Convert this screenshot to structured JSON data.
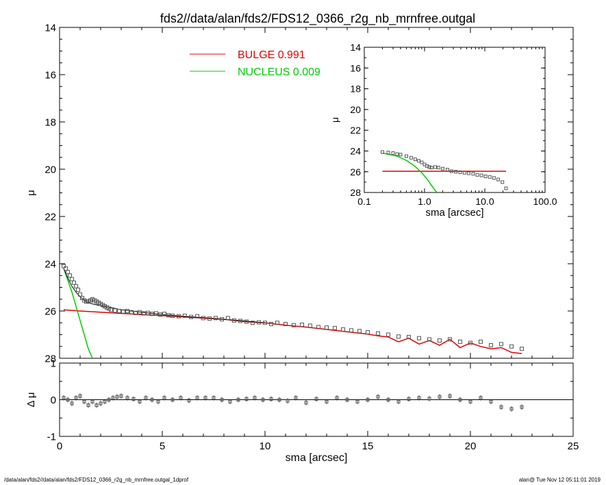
{
  "title": "fds2//data/alan/fds2/FDS12_0366_r2g_nb_mrnfree.outgal",
  "footer": {
    "left": "/data/alan/fds2//data/alan/fds2/FDS12_0366_r2g_nb_mrnfree.outgal_1dprof",
    "right": "alan@  Tue Nov 12 05:11:01 2019"
  },
  "colors": {
    "data": "#555555",
    "bulge": "#e00000",
    "nucleus": "#00cc00",
    "model": "#000000"
  },
  "chart_data": [
    {
      "id": "main",
      "type": "scatter",
      "xlabel": "",
      "ylabel": "μ",
      "xlim": [
        0,
        25
      ],
      "ylim": [
        28,
        14
      ],
      "xticks": [
        0,
        5,
        10,
        15,
        20,
        25
      ],
      "yticks": [
        14,
        16,
        18,
        20,
        22,
        24,
        26,
        28
      ],
      "legend": {
        "placement": "top-center",
        "entries": [
          {
            "label": "BULGE",
            "value": "0.991",
            "color": "#e00000"
          },
          {
            "label": "NUCLEUS",
            "value": "0.009",
            "color": "#00cc00"
          }
        ]
      },
      "series": [
        {
          "name": "BULGE",
          "kind": "line",
          "color": "#e00000",
          "x": [
            0.2,
            1,
            2,
            3,
            4,
            5,
            6,
            7,
            8,
            9,
            10,
            11,
            12,
            13,
            14,
            15,
            15.5,
            16,
            16.5,
            17,
            17.5,
            18,
            18.5,
            19,
            19.5,
            20,
            20.5,
            21,
            21.5,
            22,
            22.5
          ],
          "y": [
            25.95,
            26.0,
            26.05,
            26.1,
            26.15,
            26.2,
            26.25,
            26.3,
            26.35,
            26.45,
            26.5,
            26.6,
            26.68,
            26.78,
            26.88,
            26.98,
            27.05,
            27.1,
            27.3,
            27.15,
            27.4,
            27.25,
            27.45,
            27.2,
            27.55,
            27.35,
            27.5,
            27.6,
            27.55,
            27.75,
            27.8
          ]
        },
        {
          "name": "NUCLEUS",
          "kind": "line",
          "color": "#00cc00",
          "x": [
            0.2,
            0.4,
            0.6,
            0.8,
            1.0,
            1.2,
            1.4,
            1.6
          ],
          "y": [
            24.2,
            24.7,
            25.2,
            25.8,
            26.4,
            27.0,
            27.6,
            28.0
          ]
        },
        {
          "name": "model",
          "kind": "line",
          "color": "#000000",
          "x": [
            0.2,
            0.4,
            0.6,
            0.8,
            1.0,
            1.2,
            1.4,
            1.6,
            2.0,
            2.5,
            3,
            4,
            5,
            6,
            7,
            8,
            9,
            10
          ],
          "y": [
            24.2,
            24.6,
            24.95,
            25.2,
            25.4,
            25.55,
            25.65,
            25.7,
            25.78,
            25.85,
            25.95,
            26.05,
            26.15,
            26.22,
            26.28,
            26.35,
            26.42,
            26.5
          ]
        },
        {
          "name": "data",
          "kind": "points",
          "color": "#555555",
          "x": [
            0.2,
            0.3,
            0.4,
            0.5,
            0.6,
            0.7,
            0.8,
            0.9,
            1.0,
            1.1,
            1.2,
            1.3,
            1.4,
            1.5,
            1.6,
            1.7,
            1.8,
            1.9,
            2.0,
            2.1,
            2.2,
            2.3,
            2.4,
            2.5,
            2.7,
            2.9,
            3.1,
            3.3,
            3.5,
            3.7,
            3.9,
            4.1,
            4.3,
            4.5,
            4.7,
            4.9,
            5.1,
            5.3,
            5.5,
            5.8,
            6.1,
            6.4,
            6.7,
            7.0,
            7.3,
            7.6,
            7.9,
            8.2,
            8.5,
            8.8,
            9.1,
            9.4,
            9.7,
            10.0,
            10.3,
            10.6,
            11.0,
            11.4,
            11.8,
            12.2,
            12.6,
            13.0,
            13.4,
            13.8,
            14.2,
            14.6,
            15.0,
            15.5,
            16.0,
            16.5,
            17.0,
            17.5,
            18.0,
            18.5,
            19.0,
            19.5,
            20.0,
            20.5,
            21.0,
            21.5,
            22.0,
            22.5
          ],
          "y": [
            24.1,
            24.2,
            24.35,
            24.5,
            24.65,
            24.8,
            24.95,
            25.1,
            25.3,
            25.45,
            25.55,
            25.6,
            25.6,
            25.55,
            25.5,
            25.55,
            25.6,
            25.65,
            25.7,
            25.75,
            25.8,
            25.85,
            25.9,
            25.95,
            25.98,
            26.0,
            26.02,
            26.0,
            26.05,
            26.08,
            26.05,
            26.1,
            26.08,
            26.12,
            26.1,
            26.15,
            26.12,
            26.18,
            26.2,
            26.22,
            26.2,
            26.25,
            26.22,
            26.3,
            26.32,
            26.3,
            26.35,
            26.3,
            26.4,
            26.42,
            26.45,
            26.5,
            26.48,
            26.5,
            26.55,
            26.5,
            26.55,
            26.6,
            26.58,
            26.62,
            26.68,
            26.7,
            26.72,
            26.78,
            26.82,
            26.85,
            26.9,
            26.95,
            27.0,
            27.08,
            27.1,
            27.15,
            27.2,
            27.25,
            27.2,
            27.3,
            27.35,
            27.3,
            27.45,
            27.4,
            27.5,
            27.6
          ]
        }
      ]
    },
    {
      "id": "residual",
      "type": "scatter",
      "xlabel": "sma [arcsec]",
      "ylabel": "Δ μ",
      "xlim": [
        0,
        25
      ],
      "ylim": [
        -1,
        1
      ],
      "xticks": [
        0,
        5,
        10,
        15,
        20,
        25
      ],
      "yticks": [
        -1,
        0,
        1
      ],
      "grid": false,
      "series": [
        {
          "name": "residual",
          "kind": "points",
          "color": "#555555",
          "x": [
            0.2,
            0.4,
            0.6,
            0.8,
            1.0,
            1.2,
            1.4,
            1.6,
            1.8,
            2.0,
            2.2,
            2.4,
            2.6,
            2.8,
            3.0,
            3.3,
            3.6,
            3.9,
            4.2,
            4.5,
            4.8,
            5.1,
            5.5,
            5.9,
            6.3,
            6.7,
            7.1,
            7.5,
            7.9,
            8.3,
            8.7,
            9.1,
            9.5,
            9.9,
            10.3,
            10.7,
            11.1,
            11.5,
            12.0,
            12.5,
            13.0,
            13.5,
            14.0,
            14.5,
            15.0,
            15.5,
            16.0,
            16.5,
            17.0,
            17.5,
            18.0,
            18.5,
            19.0,
            19.5,
            20.0,
            20.5,
            21.0,
            21.5,
            22.0,
            22.5
          ],
          "y": [
            0.05,
            0.0,
            -0.1,
            0.05,
            0.1,
            -0.05,
            -0.15,
            -0.05,
            -0.15,
            -0.1,
            -0.05,
            0.0,
            0.05,
            0.08,
            0.1,
            0.05,
            0.02,
            -0.05,
            0.05,
            0.0,
            -0.05,
            0.05,
            0.0,
            0.05,
            -0.02,
            0.05,
            0.05,
            0.05,
            0.0,
            -0.05,
            0.0,
            0.02,
            0.05,
            0.0,
            0.02,
            0.0,
            -0.03,
            0.05,
            -0.08,
            0.02,
            -0.05,
            0.05,
            0.0,
            -0.05,
            0.0,
            0.08,
            0.0,
            -0.05,
            0.02,
            0.05,
            0.03,
            0.08,
            0.1,
            0.0,
            -0.05,
            0.05,
            -0.05,
            -0.2,
            -0.25,
            -0.2
          ]
        }
      ]
    },
    {
      "id": "inset",
      "type": "scatter",
      "xlabel": "sma [arcsec]",
      "ylabel": "μ",
      "xscale": "log",
      "xlim": [
        0.1,
        100
      ],
      "ylim": [
        28,
        14
      ],
      "xticks": [
        0.1,
        1.0,
        10.0,
        100.0
      ],
      "xticklabels": [
        "0.1",
        "1.0",
        "10.0",
        "100.0"
      ],
      "yticks": [
        14,
        16,
        18,
        20,
        22,
        24,
        26,
        28
      ],
      "series": [
        {
          "name": "BULGE",
          "kind": "line",
          "color": "#e00000",
          "x": [
            0.2,
            22.5
          ],
          "y": [
            25.95,
            25.95
          ]
        },
        {
          "name": "NUCLEUS",
          "kind": "line",
          "color": "#00cc00",
          "x": [
            0.2,
            0.35,
            0.5,
            0.7,
            0.9,
            1.1,
            1.3,
            1.5,
            1.6
          ],
          "y": [
            24.2,
            24.5,
            24.9,
            25.5,
            26.1,
            26.7,
            27.3,
            27.8,
            28.0
          ]
        },
        {
          "name": "data",
          "kind": "points",
          "color": "#555555",
          "x": [
            0.2,
            0.25,
            0.3,
            0.35,
            0.4,
            0.5,
            0.6,
            0.7,
            0.8,
            0.9,
            1.0,
            1.1,
            1.2,
            1.3,
            1.5,
            1.7,
            2.0,
            2.4,
            2.8,
            3.3,
            3.9,
            4.6,
            5.4,
            6.4,
            7.5,
            8.8,
            10.3,
            12.1,
            14.2,
            16.7,
            19.6,
            22.5
          ],
          "y": [
            24.1,
            24.15,
            24.2,
            24.3,
            24.35,
            24.5,
            24.65,
            24.8,
            24.95,
            25.1,
            25.3,
            25.45,
            25.55,
            25.6,
            25.55,
            25.6,
            25.7,
            25.8,
            25.95,
            26.0,
            26.05,
            26.1,
            26.15,
            26.2,
            26.3,
            26.35,
            26.45,
            26.5,
            26.6,
            26.75,
            27.0,
            27.6
          ]
        }
      ]
    }
  ]
}
